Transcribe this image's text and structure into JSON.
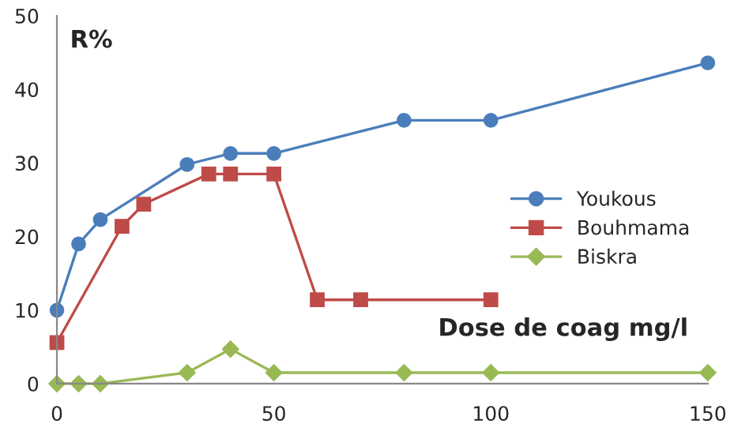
{
  "chart_data": {
    "type": "line",
    "xlabel": "Dose de coag mg/l",
    "ylabel": "R%",
    "xlim": [
      0,
      150
    ],
    "xticks": [
      0,
      50,
      100,
      150
    ],
    "ylim": [
      0,
      50
    ],
    "yticks": [
      0,
      10,
      20,
      30,
      40,
      50
    ],
    "grid": false,
    "legend": "right",
    "line_style": "solid",
    "series": [
      {
        "name": "Youkous",
        "color": "#4a7ebb",
        "marker": "circle",
        "x": [
          0,
          5,
          10,
          30,
          40,
          50,
          80,
          100,
          150
        ],
        "values": [
          10,
          19,
          22.3,
          29.8,
          31.3,
          31.3,
          35.8,
          35.8,
          43.6
        ]
      },
      {
        "name": "Bouhmama",
        "color": "#be4b48",
        "marker": "square",
        "x": [
          0,
          15,
          20,
          35,
          40,
          50,
          60,
          70,
          100
        ],
        "values": [
          5.6,
          21.4,
          24.4,
          28.5,
          28.5,
          28.5,
          11.4,
          11.4,
          11.4
        ]
      },
      {
        "name": "Biskra",
        "color": "#98b954",
        "marker": "diamond",
        "x": [
          0,
          5,
          10,
          30,
          40,
          50,
          80,
          100,
          150
        ],
        "values": [
          0,
          0,
          0,
          1.5,
          4.7,
          1.5,
          1.5,
          1.5,
          1.5
        ]
      }
    ]
  }
}
